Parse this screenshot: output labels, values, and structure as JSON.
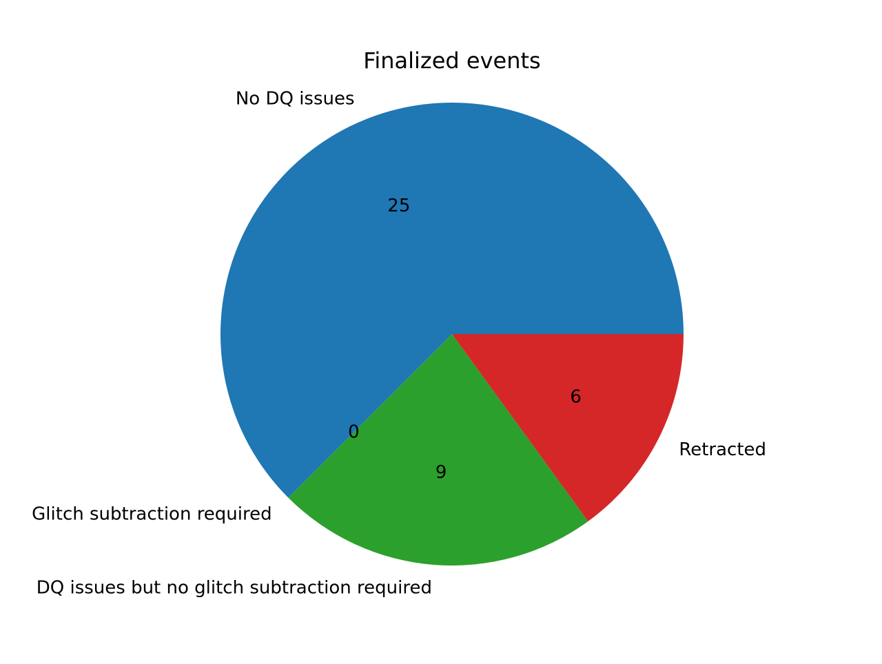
{
  "chart_data": {
    "type": "pie",
    "title": "Finalized events",
    "slices": [
      {
        "label": "No DQ issues",
        "value": 25,
        "color": "#1f77b4",
        "value_label": "25"
      },
      {
        "label": "Glitch subtraction required",
        "value": 0,
        "color": "#ff7f0e",
        "value_label": "0"
      },
      {
        "label": "DQ issues but no glitch subtraction required",
        "value": 9,
        "color": "#2ca02c",
        "value_label": "9"
      },
      {
        "label": "Retracted",
        "value": 6,
        "color": "#d62728",
        "value_label": "6"
      }
    ],
    "start_angle_deg": 0,
    "direction": "counterclockwise",
    "legend": "none"
  }
}
